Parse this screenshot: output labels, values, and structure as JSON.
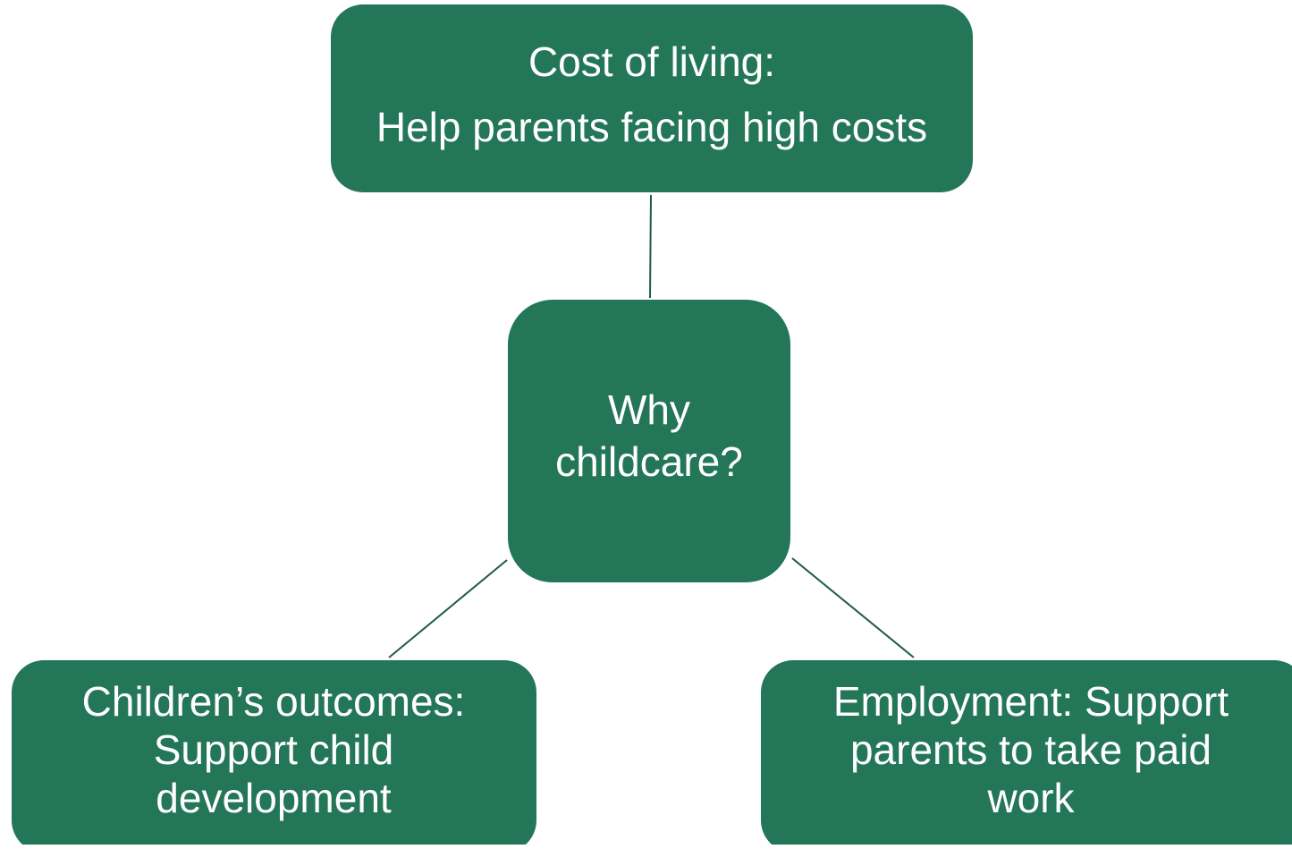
{
  "nodes": [
    {
      "lines": [
        "Cost of living:",
        "Help parents facing high costs"
      ]
    },
    {
      "lines": [
        "Why",
        "childcare?"
      ]
    },
    {
      "lines": [
        "Children’s outcomes:",
        "Support child",
        "development"
      ]
    },
    {
      "lines": [
        "Employment: Support",
        "parents to take paid",
        "work"
      ]
    }
  ]
}
